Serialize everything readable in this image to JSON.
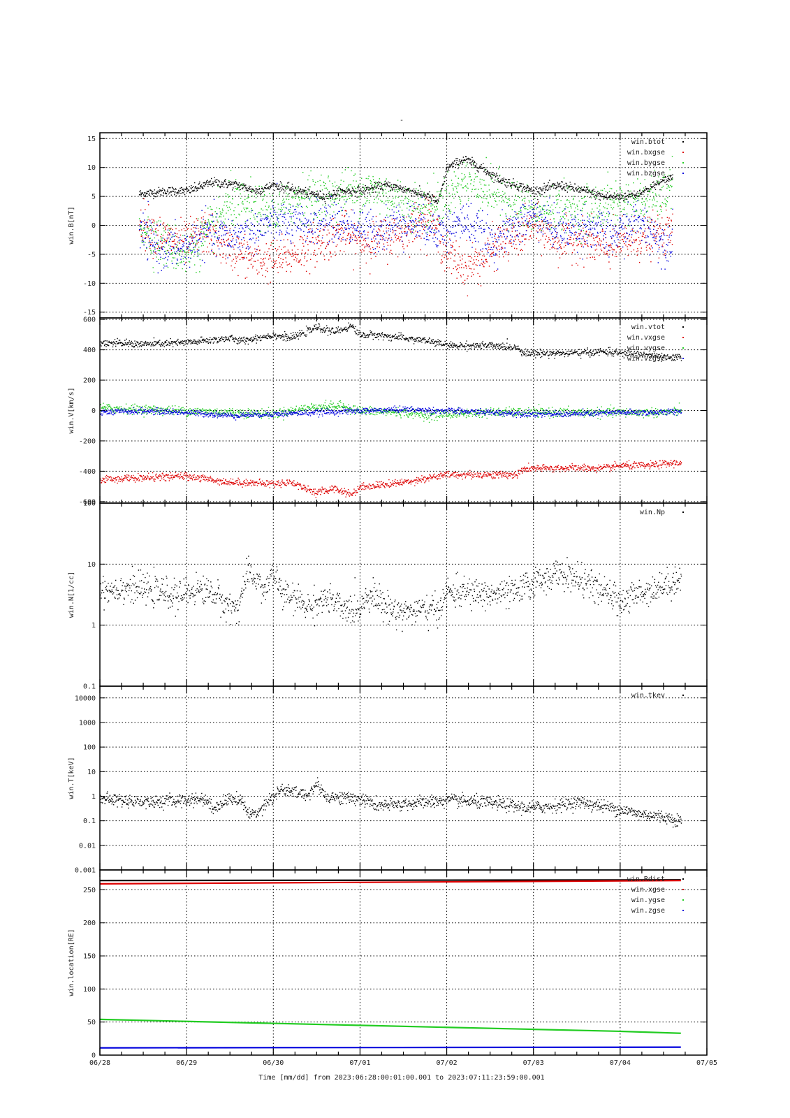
{
  "title": "-",
  "time_caption": "Time [mm/dd]  from 2023:06:28:00:01:00.001  to  2023:07:11:23:59:00.001",
  "x_axis": {
    "range_days": [
      0,
      7
    ],
    "tick_labels": [
      "06/28",
      "06/29",
      "06/30",
      "07/01",
      "07/02",
      "07/03",
      "07/04",
      "07/05"
    ]
  },
  "colors": {
    "black": "#000000",
    "red": "#dd0000",
    "green": "#22cc22",
    "blue": "#0000dd",
    "grid": "#000000"
  },
  "chart_data": [
    {
      "type": "scatter",
      "ylabel": "win.B[nT]",
      "ylim": [
        -16,
        16
      ],
      "log": false,
      "yticks": [
        -15,
        -10,
        -5,
        0,
        5,
        10,
        15
      ],
      "legend_position": "top-right",
      "x_start": 0.45,
      "x_end": 6.6,
      "series": [
        {
          "name": "win.btot",
          "color": "#000000",
          "x": [
            0.45,
            0.8,
            1.0,
            1.3,
            1.6,
            1.8,
            2.0,
            2.3,
            2.6,
            2.8,
            3.0,
            3.3,
            3.6,
            3.8,
            3.9,
            4.0,
            4.2,
            4.4,
            4.6,
            4.8,
            5.0,
            5.3,
            5.6,
            5.8,
            6.0,
            6.2,
            6.4,
            6.6
          ],
          "y": [
            5.5,
            6,
            6,
            7.5,
            7,
            6,
            7,
            6,
            5,
            6,
            6,
            7,
            6,
            5,
            4,
            10,
            11.5,
            10,
            8,
            7,
            6,
            7,
            6,
            5,
            5,
            5.5,
            7,
            8.5
          ],
          "noise": 0.4
        },
        {
          "name": "win.bxgse",
          "color": "#dd0000",
          "x": [
            0.45,
            0.7,
            1.0,
            1.2,
            1.5,
            1.8,
            2.0,
            2.2,
            2.5,
            2.8,
            3.0,
            3.3,
            3.5,
            3.8,
            4.0,
            4.2,
            4.4,
            4.6,
            4.8,
            5.0,
            5.3,
            5.5,
            5.8,
            6.0,
            6.3,
            6.6
          ],
          "y": [
            1,
            -2,
            -3,
            -1,
            -4,
            -6,
            -6,
            -5,
            -3,
            -1,
            -3,
            -2,
            -1,
            2,
            -5,
            -7,
            -6,
            -3,
            -2,
            0,
            -3,
            -2,
            -4,
            -3,
            -2,
            -1
          ],
          "noise": 1.8
        },
        {
          "name": "win.bygse",
          "color": "#22cc22",
          "x": [
            0.45,
            0.7,
            1.0,
            1.2,
            1.5,
            1.8,
            2.0,
            2.3,
            2.6,
            2.9,
            3.2,
            3.5,
            3.8,
            4.0,
            4.2,
            4.5,
            4.8,
            5.0,
            5.3,
            5.6,
            5.9,
            6.2,
            6.5,
            6.6
          ],
          "y": [
            0,
            -3,
            -5,
            -2,
            4,
            3,
            2,
            5,
            5,
            6,
            6,
            4,
            3,
            5,
            8,
            6,
            4,
            2,
            3,
            3,
            4,
            4,
            5,
            8
          ],
          "noise": 2.0
        },
        {
          "name": "win.bzgse",
          "color": "#0000dd",
          "x": [
            0.45,
            0.7,
            1.0,
            1.2,
            1.5,
            1.8,
            2.0,
            2.3,
            2.6,
            2.9,
            3.2,
            3.5,
            3.8,
            4.0,
            4.2,
            4.5,
            4.8,
            5.0,
            5.3,
            5.6,
            5.9,
            6.2,
            6.5,
            6.6
          ],
          "y": [
            -1,
            -4,
            -4,
            -1,
            -2,
            -1,
            1,
            0,
            1,
            0,
            -1,
            1,
            0,
            -1,
            1,
            -3,
            0,
            2,
            -1,
            0,
            -2,
            1,
            -3,
            -2
          ],
          "noise": 1.8
        }
      ]
    },
    {
      "type": "scatter",
      "ylabel": "win.V[km/s]",
      "ylim": [
        -610,
        610
      ],
      "log": false,
      "yticks": [
        -600,
        -400,
        -200,
        0,
        200,
        400,
        600
      ],
      "legend_position": "top-right",
      "x_start": 0.0,
      "x_end": 6.7,
      "series": [
        {
          "name": "win.vtot",
          "color": "#000000",
          "x": [
            0,
            0.5,
            1.0,
            1.5,
            1.6,
            2.0,
            2.2,
            2.5,
            2.7,
            2.9,
            3.0,
            3.2,
            3.5,
            3.8,
            4.0,
            4.5,
            4.8,
            4.9,
            5.0,
            5.5,
            5.8,
            6.0,
            6.3,
            6.5,
            6.7
          ],
          "y": [
            450,
            440,
            450,
            480,
            460,
            500,
            480,
            550,
            520,
            560,
            500,
            500,
            480,
            460,
            430,
            430,
            420,
            380,
            380,
            380,
            390,
            380,
            370,
            350,
            350
          ],
          "noise": 12
        },
        {
          "name": "win.vxgse",
          "color": "#dd0000",
          "x": [
            0,
            0.5,
            1.0,
            1.5,
            1.6,
            2.0,
            2.2,
            2.5,
            2.7,
            2.9,
            3.0,
            3.2,
            3.5,
            3.8,
            4.0,
            4.5,
            4.8,
            4.9,
            5.0,
            5.5,
            5.8,
            6.0,
            6.3,
            6.5,
            6.7
          ],
          "y": [
            -450,
            -440,
            -430,
            -470,
            -470,
            -480,
            -470,
            -540,
            -510,
            -550,
            -500,
            -490,
            -470,
            -440,
            -420,
            -420,
            -420,
            -380,
            -380,
            -375,
            -380,
            -360,
            -360,
            -350,
            -340
          ],
          "noise": 12
        },
        {
          "name": "win.vygse",
          "color": "#22cc22",
          "x": [
            0,
            0.5,
            1.0,
            1.5,
            2.0,
            2.5,
            2.8,
            3.0,
            3.5,
            3.8,
            4.0,
            4.5,
            5.0,
            5.5,
            6.0,
            6.5,
            6.7
          ],
          "y": [
            20,
            10,
            0,
            -10,
            -20,
            30,
            30,
            0,
            -10,
            -30,
            -20,
            -10,
            -10,
            -10,
            -10,
            -10,
            0
          ],
          "noise": 15
        },
        {
          "name": "win.vzgse",
          "color": "#0000dd",
          "x": [
            0,
            0.5,
            1.0,
            1.5,
            2.0,
            2.5,
            3.0,
            3.5,
            4.0,
            4.5,
            5.0,
            5.5,
            6.0,
            6.5,
            6.7
          ],
          "y": [
            -10,
            0,
            -10,
            -30,
            -20,
            -10,
            0,
            10,
            0,
            -10,
            -20,
            -20,
            -10,
            -10,
            0
          ],
          "noise": 10
        }
      ]
    },
    {
      "type": "scatter",
      "ylabel": "win.N[1/cc]",
      "ylim": [
        0.1,
        100
      ],
      "log": true,
      "yticks": [
        0.1,
        1,
        10,
        100
      ],
      "ytick_labels": [
        "0.1",
        "1",
        "10",
        "100"
      ],
      "legend_position": "top-right",
      "x_start": 0.0,
      "x_end": 6.7,
      "series": [
        {
          "name": "win.Np",
          "color": "#000000",
          "x": [
            0,
            0.3,
            0.6,
            0.9,
            1.1,
            1.3,
            1.4,
            1.5,
            1.6,
            1.7,
            1.8,
            1.9,
            2.0,
            2.1,
            2.3,
            2.4,
            2.6,
            2.8,
            3.0,
            3.1,
            3.3,
            3.5,
            3.7,
            3.9,
            4.0,
            4.2,
            4.5,
            4.8,
            5.0,
            5.1,
            5.3,
            5.4,
            5.6,
            5.8,
            6.0,
            6.1,
            6.3,
            6.5,
            6.7
          ],
          "y": [
            3.8,
            4.2,
            3.8,
            3,
            4,
            3.5,
            2.5,
            2,
            2,
            6.5,
            6,
            3.5,
            7,
            3.2,
            2.5,
            2,
            2.8,
            1.8,
            1.9,
            3.5,
            2,
            1.7,
            1.8,
            1.8,
            3.5,
            3.5,
            3.2,
            3.5,
            5,
            6,
            7,
            6.5,
            5,
            3.5,
            2.5,
            2.8,
            3.8,
            4.5,
            6
          ],
          "noise": 0.12
        }
      ]
    },
    {
      "type": "scatter",
      "ylabel": "win.T[keV]",
      "ylim": [
        0.001,
        30000
      ],
      "log": true,
      "yticks": [
        0.001,
        0.01,
        0.1,
        1,
        10,
        100,
        1000,
        10000
      ],
      "ytick_labels": [
        "0.001",
        "0.01",
        "0.1",
        "1",
        "10",
        "100",
        "1000",
        "10000"
      ],
      "legend_position": "top-right",
      "x_start": 0.0,
      "x_end": 6.7,
      "series": [
        {
          "name": "win.tkev",
          "color": "#000000",
          "x": [
            0,
            0.3,
            0.6,
            0.9,
            1.2,
            1.3,
            1.5,
            1.6,
            1.7,
            1.8,
            1.9,
            2.0,
            2.1,
            2.2,
            2.4,
            2.5,
            2.6,
            2.8,
            3.0,
            3.2,
            3.5,
            3.8,
            4.0,
            4.3,
            4.6,
            4.9,
            5.2,
            5.5,
            5.8,
            6.0,
            6.2,
            6.5,
            6.7
          ],
          "y": [
            0.8,
            0.7,
            0.6,
            0.7,
            0.8,
            0.3,
            0.8,
            0.8,
            0.2,
            0.2,
            0.5,
            1,
            2,
            1.5,
            1.2,
            3,
            1,
            0.9,
            0.8,
            0.4,
            0.5,
            0.6,
            0.7,
            0.6,
            0.5,
            0.35,
            0.4,
            0.6,
            0.4,
            0.3,
            0.2,
            0.15,
            0.1
          ],
          "noise": 0.13
        }
      ]
    },
    {
      "type": "line",
      "ylabel": "win.location[RE]",
      "ylim": [
        0,
        280
      ],
      "log": false,
      "yticks": [
        0,
        50,
        100,
        150,
        200,
        250
      ],
      "legend_position": "top-right",
      "x_start": 0.0,
      "x_end": 6.7,
      "series": [
        {
          "name": "win.Rdist",
          "color": "#000000",
          "x": [
            0,
            6.7
          ],
          "y": [
            264,
            265
          ],
          "noise": 0
        },
        {
          "name": "win.xgse",
          "color": "#dd0000",
          "x": [
            0,
            6.7
          ],
          "y": [
            259,
            264
          ],
          "noise": 0
        },
        {
          "name": "win.ygse",
          "color": "#22cc22",
          "x": [
            0,
            1,
            2,
            3,
            4,
            5,
            6,
            6.7
          ],
          "y": [
            54,
            51,
            48,
            45,
            42,
            39,
            36,
            33
          ],
          "noise": 0
        },
        {
          "name": "win.zgse",
          "color": "#0000dd",
          "x": [
            0,
            6.7
          ],
          "y": [
            11,
            12
          ],
          "noise": 0
        }
      ]
    }
  ]
}
